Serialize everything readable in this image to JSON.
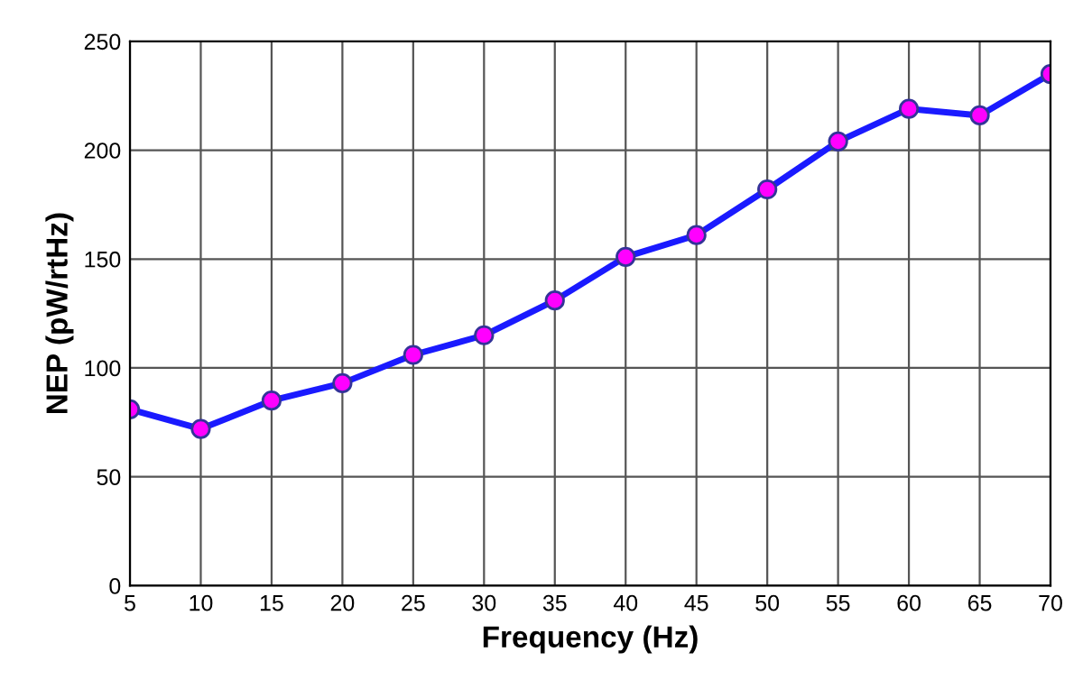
{
  "chart_data": {
    "type": "line",
    "xlabel": "Frequency (Hz)",
    "ylabel": "NEP (pW/rtHz)",
    "x": [
      5,
      10,
      15,
      20,
      25,
      30,
      35,
      40,
      45,
      50,
      55,
      60,
      65,
      70
    ],
    "series": [
      {
        "color": "#1a1aff",
        "values": [
          81,
          72,
          85,
          93,
          106,
          115,
          131,
          151,
          161,
          182,
          204,
          219,
          216,
          235
        ]
      }
    ],
    "xlim": [
      5,
      70
    ],
    "xticks": [
      5,
      10,
      15,
      20,
      25,
      30,
      35,
      40,
      45,
      50,
      55,
      60,
      65,
      70
    ],
    "ylim": [
      0,
      250
    ],
    "yticks": [
      0,
      50,
      100,
      150,
      200,
      250
    ],
    "grid": true,
    "marker": "circle",
    "line_style": "solid"
  }
}
